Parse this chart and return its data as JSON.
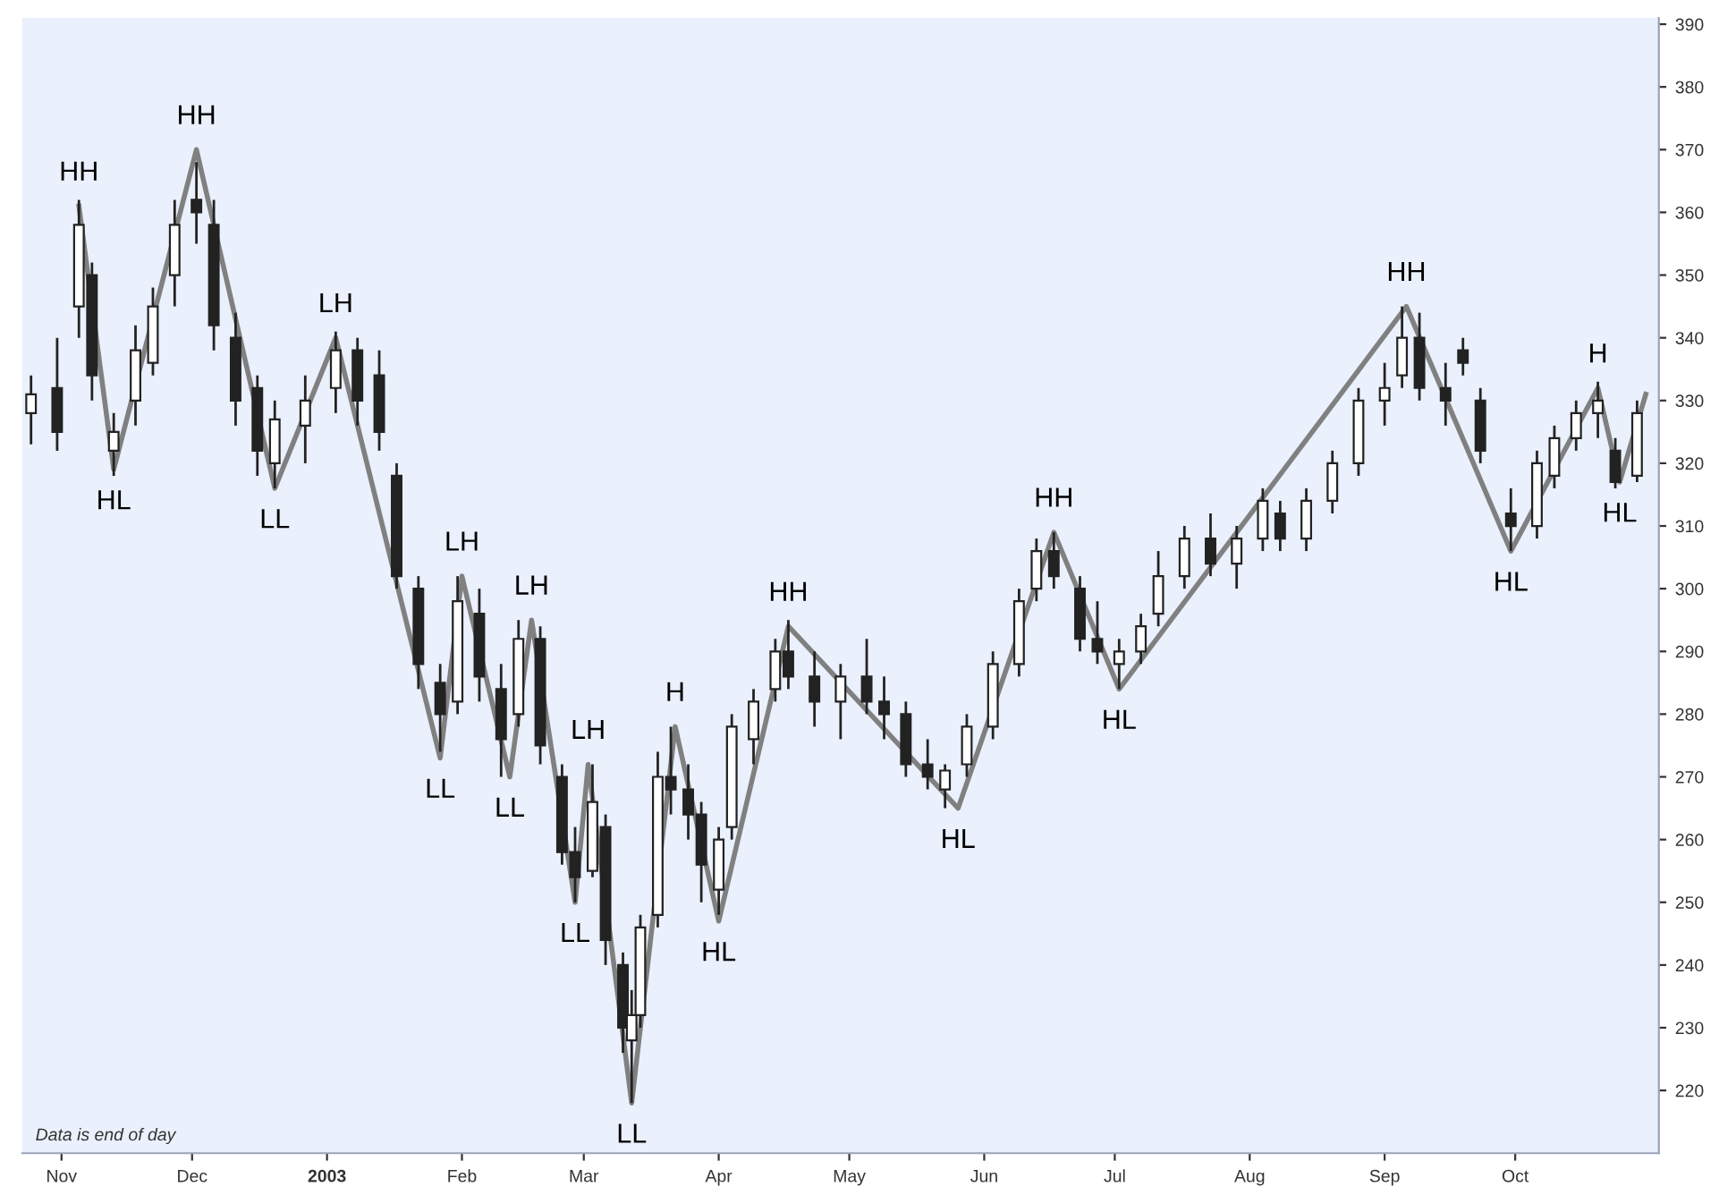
{
  "chart_data": {
    "type": "candlestick",
    "x": [
      "2002-10-25",
      "2002-10-31",
      "2002-11-05",
      "2002-11-08",
      "2002-11-13",
      "2002-11-18",
      "2002-11-22",
      "2002-11-27",
      "2002-12-02",
      "2002-12-06",
      "2002-12-11",
      "2002-12-16",
      "2002-12-20",
      "2002-12-27",
      "2003-01-03",
      "2003-01-08",
      "2003-01-13",
      "2003-01-17",
      "2003-01-22",
      "2003-01-27",
      "2003-01-31",
      "2003-02-05",
      "2003-02-10",
      "2003-02-14",
      "2003-02-19",
      "2003-02-24",
      "2003-02-27",
      "2003-03-03",
      "2003-03-06",
      "2003-03-10",
      "2003-03-12",
      "2003-03-14",
      "2003-03-18",
      "2003-03-21",
      "2003-03-25",
      "2003-03-28",
      "2003-04-01",
      "2003-04-04",
      "2003-04-09",
      "2003-04-14",
      "2003-04-17",
      "2003-04-23",
      "2003-04-29",
      "2003-05-05",
      "2003-05-09",
      "2003-05-14",
      "2003-05-19",
      "2003-05-23",
      "2003-05-28",
      "2003-06-03",
      "2003-06-09",
      "2003-06-13",
      "2003-06-17",
      "2003-06-23",
      "2003-06-27",
      "2003-07-02",
      "2003-07-07",
      "2003-07-11",
      "2003-07-17",
      "2003-07-23",
      "2003-07-29",
      "2003-08-04",
      "2003-08-08",
      "2003-08-14",
      "2003-08-20",
      "2003-08-26",
      "2003-09-01",
      "2003-09-05",
      "2003-09-09",
      "2003-09-15",
      "2003-09-19",
      "2003-09-23",
      "2003-09-30",
      "2003-10-06",
      "2003-10-10",
      "2003-10-15",
      "2003-10-20",
      "2003-10-24",
      "2003-10-29"
    ],
    "ohlc": [
      [
        328,
        334,
        323,
        331
      ],
      [
        332,
        340,
        322,
        325
      ],
      [
        345,
        362,
        340,
        358
      ],
      [
        350,
        352,
        330,
        334
      ],
      [
        322,
        328,
        318,
        325
      ],
      [
        330,
        342,
        326,
        338
      ],
      [
        336,
        348,
        334,
        345
      ],
      [
        350,
        362,
        345,
        358
      ],
      [
        362,
        368,
        355,
        360
      ],
      [
        358,
        362,
        338,
        342
      ],
      [
        340,
        344,
        326,
        330
      ],
      [
        332,
        334,
        318,
        322
      ],
      [
        320,
        330,
        316,
        327
      ],
      [
        326,
        334,
        320,
        330
      ],
      [
        332,
        341,
        328,
        338
      ],
      [
        338,
        340,
        326,
        330
      ],
      [
        334,
        338,
        322,
        325
      ],
      [
        318,
        320,
        300,
        302
      ],
      [
        300,
        302,
        284,
        288
      ],
      [
        285,
        288,
        274,
        280
      ],
      [
        282,
        302,
        280,
        298
      ],
      [
        296,
        300,
        282,
        286
      ],
      [
        284,
        288,
        270,
        276
      ],
      [
        280,
        295,
        278,
        292
      ],
      [
        292,
        294,
        272,
        275
      ],
      [
        270,
        272,
        256,
        258
      ],
      [
        258,
        262,
        250,
        254
      ],
      [
        255,
        272,
        254,
        266
      ],
      [
        262,
        264,
        240,
        244
      ],
      [
        240,
        242,
        226,
        230
      ],
      [
        228,
        236,
        218,
        232
      ],
      [
        232,
        248,
        230,
        246
      ],
      [
        248,
        274,
        246,
        270
      ],
      [
        270,
        278,
        264,
        268
      ],
      [
        268,
        272,
        260,
        264
      ],
      [
        264,
        266,
        250,
        256
      ],
      [
        252,
        262,
        248,
        260
      ],
      [
        262,
        280,
        260,
        278
      ],
      [
        276,
        284,
        272,
        282
      ],
      [
        284,
        292,
        282,
        290
      ],
      [
        290,
        295,
        284,
        286
      ],
      [
        286,
        290,
        278,
        282
      ],
      [
        282,
        288,
        276,
        286
      ],
      [
        286,
        292,
        280,
        282
      ],
      [
        282,
        286,
        276,
        280
      ],
      [
        280,
        282,
        270,
        272
      ],
      [
        272,
        276,
        268,
        270
      ],
      [
        268,
        272,
        265,
        271
      ],
      [
        272,
        280,
        270,
        278
      ],
      [
        278,
        290,
        276,
        288
      ],
      [
        288,
        300,
        286,
        298
      ],
      [
        300,
        308,
        298,
        306
      ],
      [
        306,
        309,
        300,
        302
      ],
      [
        300,
        302,
        290,
        292
      ],
      [
        292,
        298,
        288,
        290
      ],
      [
        288,
        292,
        284,
        290
      ],
      [
        290,
        296,
        288,
        294
      ],
      [
        296,
        306,
        294,
        302
      ],
      [
        302,
        310,
        300,
        308
      ],
      [
        308,
        312,
        302,
        304
      ],
      [
        304,
        310,
        300,
        308
      ],
      [
        308,
        316,
        306,
        314
      ],
      [
        312,
        314,
        306,
        308
      ],
      [
        308,
        316,
        306,
        314
      ],
      [
        314,
        322,
        312,
        320
      ],
      [
        320,
        332,
        318,
        330
      ],
      [
        330,
        336,
        326,
        332
      ],
      [
        334,
        345,
        332,
        340
      ],
      [
        340,
        344,
        330,
        332
      ],
      [
        332,
        336,
        326,
        330
      ],
      [
        338,
        340,
        334,
        336
      ],
      [
        330,
        332,
        320,
        322
      ],
      [
        312,
        316,
        306,
        310
      ],
      [
        310,
        322,
        308,
        320
      ],
      [
        318,
        326,
        316,
        324
      ],
      [
        324,
        330,
        322,
        328
      ],
      [
        328,
        333,
        324,
        330
      ],
      [
        322,
        324,
        316,
        317
      ],
      [
        318,
        330,
        317,
        328
      ]
    ],
    "series": [
      {
        "type": "line",
        "color": "#808080",
        "x": [
          "2002-11-05",
          "2002-11-13",
          "2002-12-02",
          "2002-12-20",
          "2003-01-03",
          "2003-01-27",
          "2003-02-01",
          "2003-02-12",
          "2003-02-17",
          "2003-02-27",
          "2003-03-02",
          "2003-03-12",
          "2003-03-22",
          "2003-04-01",
          "2003-04-17",
          "2003-05-26",
          "2003-06-17",
          "2003-07-02",
          "2003-09-06",
          "2003-09-30",
          "2003-10-20",
          "2003-10-25",
          "2003-10-31"
        ],
        "values": [
          361,
          319,
          370,
          316,
          340,
          273,
          302,
          270,
          295,
          250,
          272,
          218,
          278,
          247,
          294,
          265,
          309,
          284,
          345,
          306,
          332,
          317,
          331
        ]
      }
    ],
    "annotations": [
      {
        "text": "HH",
        "x": "2002-11-05",
        "y": 361
      },
      {
        "text": "HL",
        "x": "2002-11-13",
        "y": 319
      },
      {
        "text": "HH",
        "x": "2002-12-02",
        "y": 370
      },
      {
        "text": "LL",
        "x": "2002-12-20",
        "y": 316
      },
      {
        "text": "LH",
        "x": "2003-01-03",
        "y": 340
      },
      {
        "text": "LL",
        "x": "2003-01-27",
        "y": 273
      },
      {
        "text": "LH",
        "x": "2003-02-01",
        "y": 302
      },
      {
        "text": "LL",
        "x": "2003-02-12",
        "y": 270
      },
      {
        "text": "LH",
        "x": "2003-02-17",
        "y": 295
      },
      {
        "text": "LL",
        "x": "2003-02-27",
        "y": 250
      },
      {
        "text": "LH",
        "x": "2003-03-02",
        "y": 272
      },
      {
        "text": "LL",
        "x": "2003-03-12",
        "y": 218
      },
      {
        "text": "H",
        "x": "2003-03-22",
        "y": 278
      },
      {
        "text": "HL",
        "x": "2003-04-01",
        "y": 247
      },
      {
        "text": "HH",
        "x": "2003-04-17",
        "y": 294
      },
      {
        "text": "HL",
        "x": "2003-05-26",
        "y": 265
      },
      {
        "text": "HH",
        "x": "2003-06-17",
        "y": 309
      },
      {
        "text": "HL",
        "x": "2003-07-02",
        "y": 284
      },
      {
        "text": "HH",
        "x": "2003-09-06",
        "y": 345
      },
      {
        "text": "HL",
        "x": "2003-09-30",
        "y": 306
      },
      {
        "text": "H",
        "x": "2003-10-20",
        "y": 332
      },
      {
        "text": "HL",
        "x": "2003-10-25",
        "y": 317
      },
      "Data is end of day"
    ],
    "xlim": [
      "2002-10-23",
      "2003-11-03"
    ],
    "xticks": [
      {
        "value": "2002-11-01",
        "label": "Nov"
      },
      {
        "value": "2002-12-01",
        "label": "Dec"
      },
      {
        "value": "2003-01-01",
        "label": "2003"
      },
      {
        "value": "2003-02-01",
        "label": "Feb"
      },
      {
        "value": "2003-03-01",
        "label": "Mar"
      },
      {
        "value": "2003-04-01",
        "label": "Apr"
      },
      {
        "value": "2003-05-01",
        "label": "May"
      },
      {
        "value": "2003-06-01",
        "label": "Jun"
      },
      {
        "value": "2003-07-01",
        "label": "Jul"
      },
      {
        "value": "2003-08-01",
        "label": "Aug"
      },
      {
        "value": "2003-09-01",
        "label": "Sep"
      },
      {
        "value": "2003-10-01",
        "label": "Oct"
      }
    ],
    "ylim": [
      210,
      391
    ],
    "yticks": [
      220,
      230,
      240,
      250,
      260,
      270,
      280,
      290,
      300,
      310,
      320,
      330,
      340,
      350,
      360,
      370,
      380,
      390
    ],
    "grid": false,
    "legend": false
  }
}
